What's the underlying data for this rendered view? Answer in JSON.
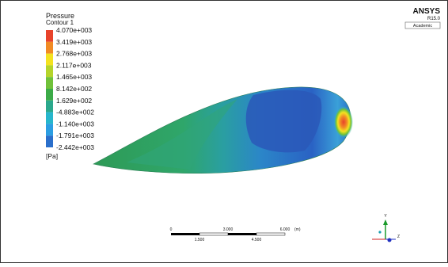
{
  "legend": {
    "title": "Pressure",
    "subtitle": "Contour 1",
    "labels": [
      "4.070e+003",
      "3.419e+003",
      "2.768e+003",
      "2.117e+003",
      "1.465e+003",
      "8.142e+002",
      "1.629e+002",
      "-4.883e+002",
      "-1.140e+003",
      "-1.791e+003",
      "-2.442e+003"
    ],
    "colors": [
      "#e8432b",
      "#f18b25",
      "#f4e220",
      "#b5d42b",
      "#70c13a",
      "#3cab48",
      "#2ba88c",
      "#27b6cc",
      "#2b9ee2",
      "#2a6fcb"
    ],
    "unit": "[Pa]"
  },
  "logo": {
    "name": "ANSYS",
    "version": "R15.0",
    "license": "Academic"
  },
  "scale": {
    "top_labels": [
      "0",
      "3.000",
      "6.000"
    ],
    "unit": "(m)",
    "bottom_labels": [
      "1.500",
      "4.500"
    ]
  },
  "triad": {
    "y": "Y",
    "z": "Z"
  }
}
